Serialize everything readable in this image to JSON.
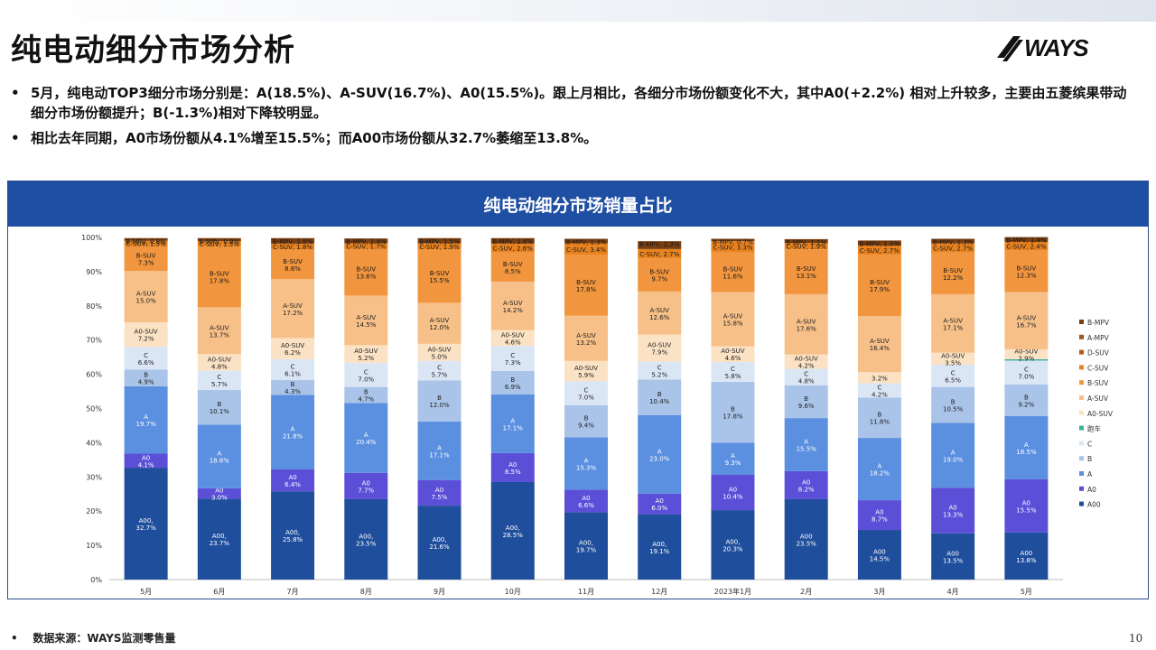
{
  "page": {
    "title": "纯电动细分市场分析",
    "logo_text": "WAYS",
    "bullets": [
      "5月，纯电动TOP3细分市场分别是：A(18.5%)、A-SUV(16.7%)、A0(15.5%)。跟上月相比，各细分市场份额变化不大，其中A0(+2.2%) 相对上升较多，主要由五菱缤果带动细分市场份额提升；B(-1.3%)相对下降较明显。",
      "相比去年同期，A0市场份额从4.1%增至15.5%；而A00市场份额从32.7%萎缩至13.8%。"
    ],
    "bullet_marker": "•",
    "footer_marker": "•",
    "footer": "数据来源：WAYS监测零售量",
    "page_number": "10"
  },
  "chart_data": {
    "type": "bar",
    "stacked": true,
    "title": "纯电动细分市场销量占比",
    "categories": [
      "5月",
      "6月",
      "7月",
      "8月",
      "9月",
      "10月",
      "11月",
      "12月",
      "2023年1月",
      "2月",
      "3月",
      "4月",
      "5月"
    ],
    "ylim": [
      0,
      100
    ],
    "ytick_labels": [
      "0%",
      "10%",
      "20%",
      "30%",
      "40%",
      "50%",
      "60%",
      "70%",
      "80%",
      "90%",
      "100%"
    ],
    "legend_position": "right",
    "series": [
      {
        "name": "A00",
        "color": "#1f4e9c",
        "label_prefix": "A00,",
        "values": [
          32.7,
          23.7,
          25.8,
          23.5,
          21.6,
          28.5,
          19.7,
          19.1,
          20.3,
          23.5,
          14.5,
          13.5,
          13.8
        ],
        "labels": [
          "A00,\n32.7%",
          "A00,\n23.7%",
          "A00,\n25.8%",
          "A00,\n23.5%",
          "A00,\n21.6%",
          "A00,\n28.5%",
          "A00,\n19.7%",
          "A00,\n19.1%",
          "A00,\n20.3%",
          "A00\n23.5%",
          "A00\n14.5%",
          "A00\n13.5%",
          "A00\n13.8%"
        ]
      },
      {
        "name": "A0",
        "color": "#5b4fd8",
        "values": [
          4.1,
          3.0,
          6.4,
          7.7,
          7.5,
          8.5,
          6.6,
          6.0,
          10.4,
          8.2,
          8.7,
          13.3,
          15.5
        ],
        "labels": [
          "A0\n4.1%",
          "A0\n3.0%",
          "A0\n6.4%",
          "A0\n7.7%",
          "A0\n7.5%",
          "A0\n8.5%",
          "A0\n6.6%",
          "A0\n6.0%",
          "A0\n10.4%",
          "A0\n8.2%",
          "A0\n8.7%",
          "A0\n13.3%",
          "A0\n15.5%"
        ]
      },
      {
        "name": "A",
        "color": "#5b8fe0",
        "values": [
          19.7,
          18.6,
          21.8,
          20.4,
          17.1,
          17.1,
          15.3,
          23.0,
          9.3,
          15.5,
          18.2,
          19.0,
          18.5
        ],
        "labels": [
          "A\n19.7%",
          "A\n18.6%",
          "A\n21.8%",
          "A\n20.4%",
          "A\n17.1%",
          "A\n17.1%",
          "A\n15.3%",
          "A\n23.0%",
          "A\n9.3%",
          "A\n15.5%",
          "A\n18.2%",
          "A\n19.0%",
          "A\n18.5%"
        ]
      },
      {
        "name": "B",
        "color": "#a9c4e8",
        "values": [
          4.9,
          10.1,
          4.3,
          4.7,
          12.0,
          6.9,
          9.4,
          10.4,
          17.8,
          9.6,
          11.8,
          10.5,
          9.2
        ],
        "labels": [
          "B\n4.9%",
          "B\n10.1%",
          "B\n4.3%",
          "B\n4.7%",
          "B\n12.0%",
          "B\n6.9%",
          "B\n9.4%",
          "B\n10.4%",
          "B\n17.8%",
          "B\n9.6%",
          "B\n11.8%",
          "B\n10.5%",
          "B\n9.2%"
        ]
      },
      {
        "name": "C",
        "color": "#dbe6f5",
        "values": [
          6.6,
          5.7,
          6.1,
          7.0,
          5.7,
          7.3,
          7.0,
          5.2,
          5.8,
          4.8,
          4.2,
          6.5,
          7.0
        ],
        "labels": [
          "C\n6.6%",
          "C\n5.7%",
          "C\n6.1%",
          "C\n7.0%",
          "C\n5.7%",
          "C\n7.3%",
          "C\n7.0%",
          "C\n5.2%",
          "C\n5.8%",
          "C\n4.8%",
          "C\n4.2%",
          "C\n6.5%",
          "C\n7.0%"
        ]
      },
      {
        "name": "跑车",
        "color": "#3cb39a",
        "values": [
          0,
          0,
          0,
          0,
          0,
          0,
          0,
          0,
          0,
          0,
          0,
          0,
          0.4
        ],
        "labels": [
          "",
          "",
          "",
          "",
          "",
          "",
          "",
          "",
          "",
          "",
          "",
          "",
          ""
        ]
      },
      {
        "name": "A0-SUV",
        "color": "#fbe2c4",
        "values": [
          7.2,
          4.8,
          6.2,
          5.2,
          5.0,
          4.6,
          5.9,
          7.9,
          4.6,
          4.2,
          3.2,
          3.5,
          2.9
        ],
        "labels": [
          "A0-SUV\n7.2%",
          "A0-SUV\n4.8%",
          "A0-SUV\n6.2%",
          "A0-SUV\n5.2%",
          "A0-SUV\n5.0%",
          "A0-SUV\n4.6%",
          "A0-SUV\n5.9%",
          "A0-SUV\n7.9%",
          "A0-SUV\n4.6%",
          "A0-SUV\n4.2%",
          "3.2%",
          "A0-SUV\n3.5%",
          "A0-SUV\n2.9%"
        ]
      },
      {
        "name": "A-SUV",
        "color": "#f7c088",
        "values": [
          15.0,
          13.7,
          17.2,
          14.5,
          12.0,
          14.2,
          13.2,
          12.6,
          15.8,
          17.6,
          16.4,
          17.1,
          16.7
        ],
        "labels": [
          "A-SUV\n15.0%",
          "A-SUV\n13.7%",
          "A-SUV\n17.2%",
          "A-SUV\n14.5%",
          "A-SUV\n12.0%",
          "A-SUV\n14.2%",
          "A-SUV\n13.2%",
          "A-SUV\n12.6%",
          "A-SUV\n15.8%",
          "A-SUV\n17.6%",
          "A-SUV\n16.4%",
          "A-SUV\n17.1%",
          "A-SUV\n16.7%"
        ]
      },
      {
        "name": "B-SUV",
        "color": "#f1953e",
        "values": [
          7.3,
          17.8,
          8.6,
          13.6,
          15.5,
          8.5,
          17.8,
          9.7,
          11.6,
          13.1,
          17.9,
          12.2,
          12.3
        ],
        "labels": [
          "B-SUV\n7.3%",
          "B-SUV\n17.8%",
          "B-SUV\n8.6%",
          "B-SUV\n13.6%",
          "B-SUV\n15.5%",
          "B-SUV\n8.5%",
          "B-SUV\n17.8%",
          "B-SUV\n9.7%",
          "B-SUV\n11.6%",
          "B-SUV\n13.1%",
          "B-SUV\n17.9%",
          "B-SUV\n12.2%",
          "B-SUV\n12.3%"
        ]
      },
      {
        "name": "C-SUV",
        "color": "#e9831f",
        "values": [
          1.5,
          1.5,
          1.8,
          1.7,
          1.9,
          2.6,
          3.4,
          2.7,
          3.3,
          1.9,
          2.7,
          2.7,
          2.4
        ],
        "labels": [
          "C-SUV, 1.5%",
          "C-SUV, 1.5%",
          "C-SUV, 1.8%",
          "C-SUV, 1.7%",
          "C-SUV, 1.9%",
          "C-SUV, 2.6%",
          "C-SUV, 3.4%",
          "C-SUV, 2.7%",
          "C-SUV, 3.3%",
          "C-SUV, 1.9%",
          "C-SUV, 2.7%",
          "C-SUV, 2.7%",
          "C-SUV, 2.4%"
        ]
      },
      {
        "name": "D-SUV",
        "color": "#b85a12",
        "values": [
          0,
          0,
          0,
          0,
          0,
          0,
          0,
          0,
          0,
          0,
          0,
          0,
          0
        ],
        "labels": [
          "",
          "",
          "",
          "",
          "",
          "",
          "",
          "",
          "",
          "",
          "",
          "",
          ""
        ]
      },
      {
        "name": "A-MPV",
        "color": "#a0551c",
        "values": [
          0,
          0,
          0,
          0,
          0,
          0,
          0,
          0,
          0,
          0,
          0,
          0,
          0
        ],
        "labels": [
          "",
          "",
          "",
          "",
          "",
          "",
          "",
          "",
          "",
          "",
          "",
          "",
          ""
        ]
      },
      {
        "name": "B-MPV",
        "color": "#7a3e10",
        "values": [
          0.8,
          0.9,
          1.6,
          1.4,
          1.5,
          1.6,
          1.3,
          2.3,
          0.7,
          1.1,
          1.5,
          1.3,
          1.4
        ],
        "labels": [
          "B-MPV, 0.8%",
          "B-MPV, 0.9%",
          "B-MPV, 1.6%",
          "B-MPV, 1.4%",
          "B-MPV, 1.5%",
          "B-MPV, 1.6%",
          "B-MPV, 1.3%",
          "B-MPV, 2.3%",
          "B-MPV, 0.7%",
          "B-MPV, 1.1%",
          "B-MPV, 1.5%",
          "B-MPV, 1.3%",
          "B-MPV, 1.4%"
        ]
      }
    ],
    "legend_order": [
      "B-MPV",
      "A-MPV",
      "D-SUV",
      "C-SUV",
      "B-SUV",
      "A-SUV",
      "A0-SUV",
      "跑车",
      "C",
      "B",
      "A",
      "A0",
      "A00"
    ]
  }
}
